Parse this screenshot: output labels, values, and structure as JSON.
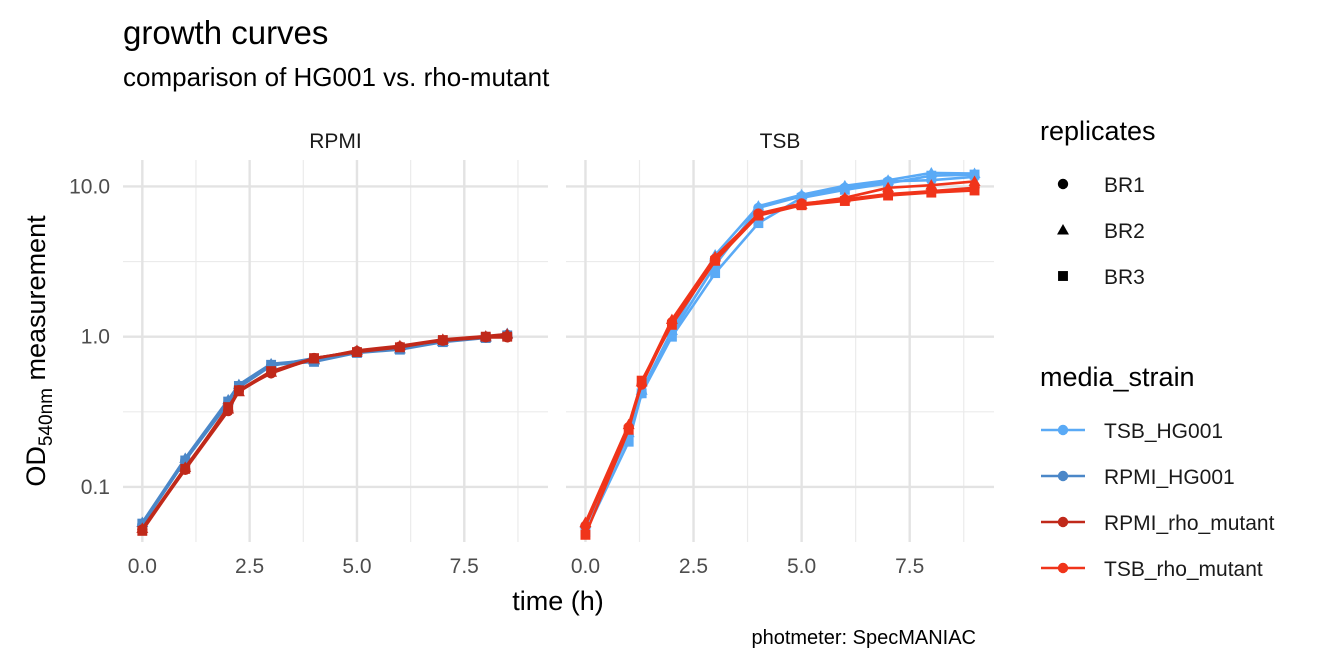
{
  "title": "growth curves",
  "subtitle": "comparison of HG001 vs. rho-mutant",
  "caption": "photmeter: SpecMANIAC",
  "chart_data": {
    "type": "line",
    "title": "growth curves",
    "subtitle": "comparison of HG001 vs. rho-mutant",
    "xlabel": "time (h)",
    "ylabel": {
      "main": "OD",
      "subscript": "540nm",
      "rest": " measurement"
    },
    "y_scale": "log10",
    "y_ticks": [
      0.1,
      1.0,
      10.0
    ],
    "y_tick_labels": [
      "0.1",
      "1.0",
      "10.0"
    ],
    "ylim": [
      0.043,
      15.0
    ],
    "x_ticks": [
      0,
      2.5,
      5,
      7.5
    ],
    "x_tick_labels": [
      "0.0",
      "2.5",
      "5.0",
      "7.5"
    ],
    "xlim": [
      -0.45,
      9.45
    ],
    "grid": true,
    "legend_position": "right",
    "facets": [
      "RPMI",
      "TSB"
    ],
    "legends": {
      "replicates": {
        "title": "replicates",
        "entries": [
          {
            "label": "BR1",
            "shape": "circle"
          },
          {
            "label": "BR2",
            "shape": "triangle"
          },
          {
            "label": "BR3",
            "shape": "square"
          }
        ]
      },
      "media_strain": {
        "title": "media_strain",
        "entries": [
          {
            "label": "TSB_HG001",
            "color": "#5aaaf6"
          },
          {
            "label": "RPMI_HG001",
            "color": "#4b87c8"
          },
          {
            "label": "RPMI_rho_mutant",
            "color": "#c0291a"
          },
          {
            "label": "TSB_rho_mutant",
            "color": "#f0341a"
          }
        ]
      }
    },
    "series": [
      {
        "facet": "RPMI",
        "group": "RPMI_HG001",
        "replicate": "BR1",
        "x": [
          0,
          1,
          2,
          2.25,
          3,
          4,
          5,
          6,
          7,
          8,
          8.5
        ],
        "y": [
          0.056,
          0.15,
          0.36,
          0.46,
          0.64,
          0.72,
          0.8,
          0.84,
          0.94,
          1.0,
          1.03
        ]
      },
      {
        "facet": "RPMI",
        "group": "RPMI_HG001",
        "replicate": "BR2",
        "x": [
          0,
          1,
          2,
          2.25,
          3,
          4,
          5,
          6,
          7,
          8,
          8.5
        ],
        "y": [
          0.058,
          0.155,
          0.38,
          0.48,
          0.66,
          0.7,
          0.79,
          0.83,
          0.93,
          0.99,
          1.05
        ]
      },
      {
        "facet": "RPMI",
        "group": "RPMI_HG001",
        "replicate": "BR3",
        "x": [
          0,
          1,
          2,
          2.25,
          3,
          4,
          5,
          6,
          7,
          8,
          8.5
        ],
        "y": [
          0.057,
          0.15,
          0.37,
          0.47,
          0.65,
          0.68,
          0.78,
          0.82,
          0.92,
          0.98,
          1.02
        ]
      },
      {
        "facet": "RPMI",
        "group": "RPMI_rho_mutant",
        "replicate": "BR1",
        "x": [
          0,
          1,
          2,
          2.25,
          3,
          4,
          5,
          6,
          7,
          8,
          8.5
        ],
        "y": [
          0.052,
          0.13,
          0.32,
          0.44,
          0.57,
          0.72,
          0.8,
          0.86,
          0.94,
          0.99,
          0.99
        ]
      },
      {
        "facet": "RPMI",
        "group": "RPMI_rho_mutant",
        "replicate": "BR2",
        "x": [
          0,
          1,
          2,
          2.25,
          3,
          4,
          5,
          6,
          7,
          8,
          8.5
        ],
        "y": [
          0.053,
          0.135,
          0.33,
          0.43,
          0.58,
          0.71,
          0.81,
          0.87,
          0.96,
          1.01,
          1.04
        ]
      },
      {
        "facet": "RPMI",
        "group": "RPMI_rho_mutant",
        "replicate": "BR3",
        "x": [
          0,
          1,
          2,
          2.25,
          3,
          4,
          5,
          6,
          7,
          8,
          8.5
        ],
        "y": [
          0.051,
          0.132,
          0.34,
          0.44,
          0.59,
          0.72,
          0.79,
          0.85,
          0.95,
          1.0,
          1.0
        ]
      },
      {
        "facet": "TSB",
        "group": "TSB_HG001",
        "replicate": "BR1",
        "x": [
          0,
          1,
          1.3,
          2,
          3,
          4,
          5,
          6,
          7,
          8,
          9
        ],
        "y": [
          0.055,
          0.22,
          0.42,
          1.05,
          3.0,
          7.2,
          8.6,
          9.8,
          10.8,
          11.0,
          11.6
        ]
      },
      {
        "facet": "TSB",
        "group": "TSB_HG001",
        "replicate": "BR2",
        "x": [
          0,
          1,
          1.3,
          2,
          3,
          4,
          5,
          6,
          7,
          8,
          9
        ],
        "y": [
          0.057,
          0.23,
          0.44,
          1.1,
          3.5,
          7.4,
          8.8,
          10.1,
          11.0,
          12.3,
          12.2
        ]
      },
      {
        "facet": "TSB",
        "group": "TSB_HG001",
        "replicate": "BR3",
        "x": [
          0,
          1,
          1.3,
          2,
          3,
          4,
          5,
          6,
          7,
          8,
          9
        ],
        "y": [
          0.05,
          0.2,
          0.42,
          1.0,
          2.65,
          5.7,
          8.4,
          9.5,
          10.5,
          11.8,
          12.0
        ]
      },
      {
        "facet": "TSB",
        "group": "TSB_rho_mutant",
        "replicate": "BR1",
        "x": [
          0,
          1,
          1.3,
          2,
          3,
          4,
          5,
          6,
          7,
          8,
          9
        ],
        "y": [
          0.055,
          0.25,
          0.48,
          1.25,
          3.3,
          6.6,
          7.7,
          8.2,
          8.9,
          9.3,
          9.8
        ]
      },
      {
        "facet": "TSB",
        "group": "TSB_rho_mutant",
        "replicate": "BR2",
        "x": [
          0,
          1,
          1.3,
          2,
          3,
          4,
          5,
          6,
          7,
          8,
          9
        ],
        "y": [
          0.058,
          0.26,
          0.5,
          1.3,
          3.4,
          6.5,
          7.6,
          8.4,
          9.8,
          10.2,
          10.8
        ]
      },
      {
        "facet": "TSB",
        "group": "TSB_rho_mutant",
        "replicate": "BR3",
        "x": [
          0,
          1,
          1.3,
          2,
          3,
          4,
          5,
          6,
          7,
          8,
          9
        ],
        "y": [
          0.048,
          0.24,
          0.51,
          1.2,
          3.2,
          6.4,
          7.5,
          8.0,
          8.7,
          9.1,
          9.4
        ]
      }
    ]
  }
}
